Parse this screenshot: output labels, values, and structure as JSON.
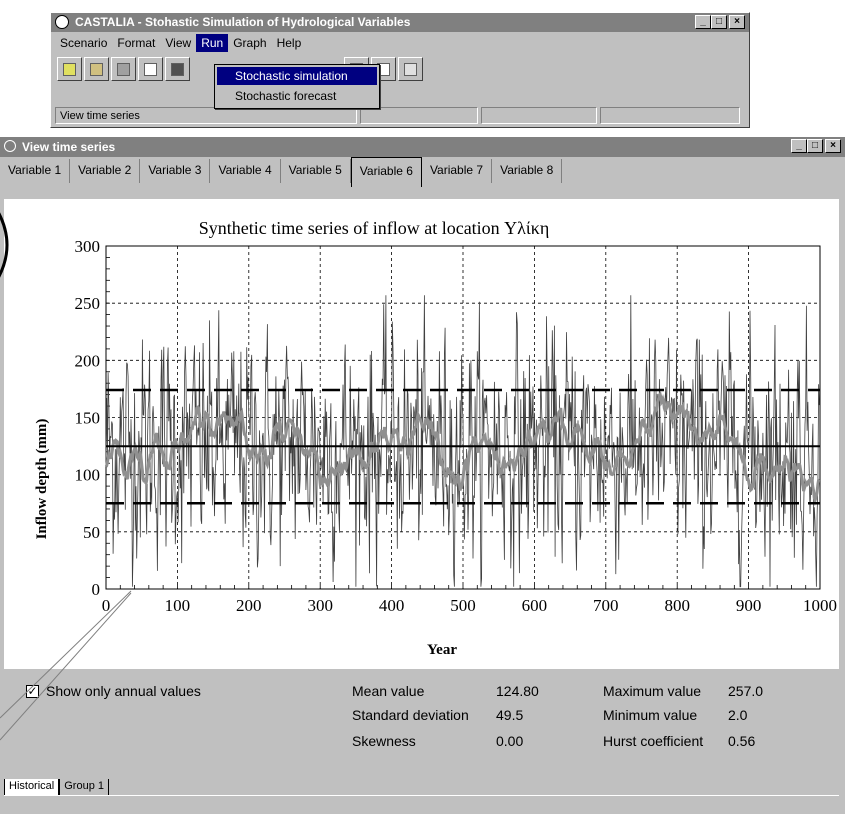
{
  "app": {
    "title": "CASTALIA - Stohastic Simulation of Hydrological Variables",
    "menus": [
      {
        "label": "Scenario"
      },
      {
        "label": "Format"
      },
      {
        "label": "View"
      },
      {
        "label": "Run"
      },
      {
        "label": "Graph"
      },
      {
        "label": "Help"
      }
    ],
    "toolbar_icons": [
      "new-scenario-icon",
      "open-folder-icon",
      "save-icon",
      "copy-icon",
      "paint-icon",
      "chart-icon",
      "chart-icon",
      "print-icon"
    ],
    "status_text": "View time series",
    "run_menu": [
      {
        "label": "Stochastic simulation"
      },
      {
        "label": "Stochastic forecast"
      }
    ]
  },
  "child": {
    "title": "View time series",
    "tabs": [
      "Variable 1",
      "Variable 2",
      "Variable 3",
      "Variable 4",
      "Variable 5",
      "Variable 6",
      "Variable 7",
      "Variable 8"
    ],
    "selected_tab": "Variable 6",
    "checkbox_label": "Show only annual values",
    "checkbox_checked": true,
    "stats": {
      "mean_label": "Mean value",
      "mean_value": "124.80",
      "std_label": "Standard deviation",
      "std_value": "49.5",
      "skew_label": "Skewness",
      "skew_value": "0.00",
      "max_label": "Maximum value",
      "max_value": "257.0",
      "min_label": "Minimum value",
      "min_value": "2.0",
      "hurst_label": "Hurst coefficient",
      "hurst_value": "0.56"
    },
    "bottom_tabs": [
      "Historical",
      "Group 1"
    ]
  },
  "chart_data": {
    "type": "line",
    "title": "Synthetic time series of inflow at location Υλίκη",
    "xlabel": "Year",
    "ylabel": "Inflow depth (mm)",
    "xlim": [
      0,
      1000
    ],
    "ylim": [
      0,
      300
    ],
    "xticks": [
      "0",
      "100",
      "200",
      "300",
      "400",
      "500",
      "600",
      "700",
      "800",
      "900",
      "1000"
    ],
    "yticks": [
      "0",
      "50",
      "100",
      "150",
      "200",
      "250",
      "300"
    ],
    "grid": true,
    "mean_line": 124.8,
    "band_lines": [
      75,
      174
    ],
    "series_mean": 124.8,
    "series_std": 49.5,
    "series_min": 2.0,
    "series_max": 257.0,
    "colors": {
      "series": "#404040",
      "moving_average": "#909090",
      "reference": "#000000"
    }
  }
}
